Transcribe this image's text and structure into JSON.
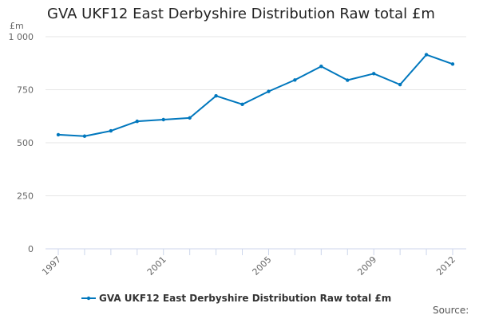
{
  "chart_data": {
    "type": "line",
    "title": "GVA UKF12 East Derbyshire Distribution Raw total £m",
    "ylabel": "£m",
    "xlabel": "",
    "ylim": [
      0,
      1000
    ],
    "yticks": [
      0,
      250,
      500,
      750,
      1000
    ],
    "ytick_labels": [
      "0",
      "250",
      "500",
      "750",
      "1 000"
    ],
    "x": [
      1997,
      1998,
      1999,
      2000,
      2001,
      2002,
      2003,
      2004,
      2005,
      2006,
      2007,
      2008,
      2009,
      2010,
      2011,
      2012
    ],
    "xtick_labels": [
      "1997",
      "2001",
      "2005",
      "2009",
      "2012"
    ],
    "grid": true,
    "legend_position": "bottom",
    "series": [
      {
        "name": "GVA UKF12 East Derbyshire Distribution Raw total £m",
        "color": "#0077bd",
        "values": [
          538,
          531,
          556,
          601,
          609,
          617,
          721,
          681,
          742,
          796,
          860,
          795,
          826,
          774,
          915,
          871
        ]
      }
    ]
  },
  "source_label": "Source:"
}
